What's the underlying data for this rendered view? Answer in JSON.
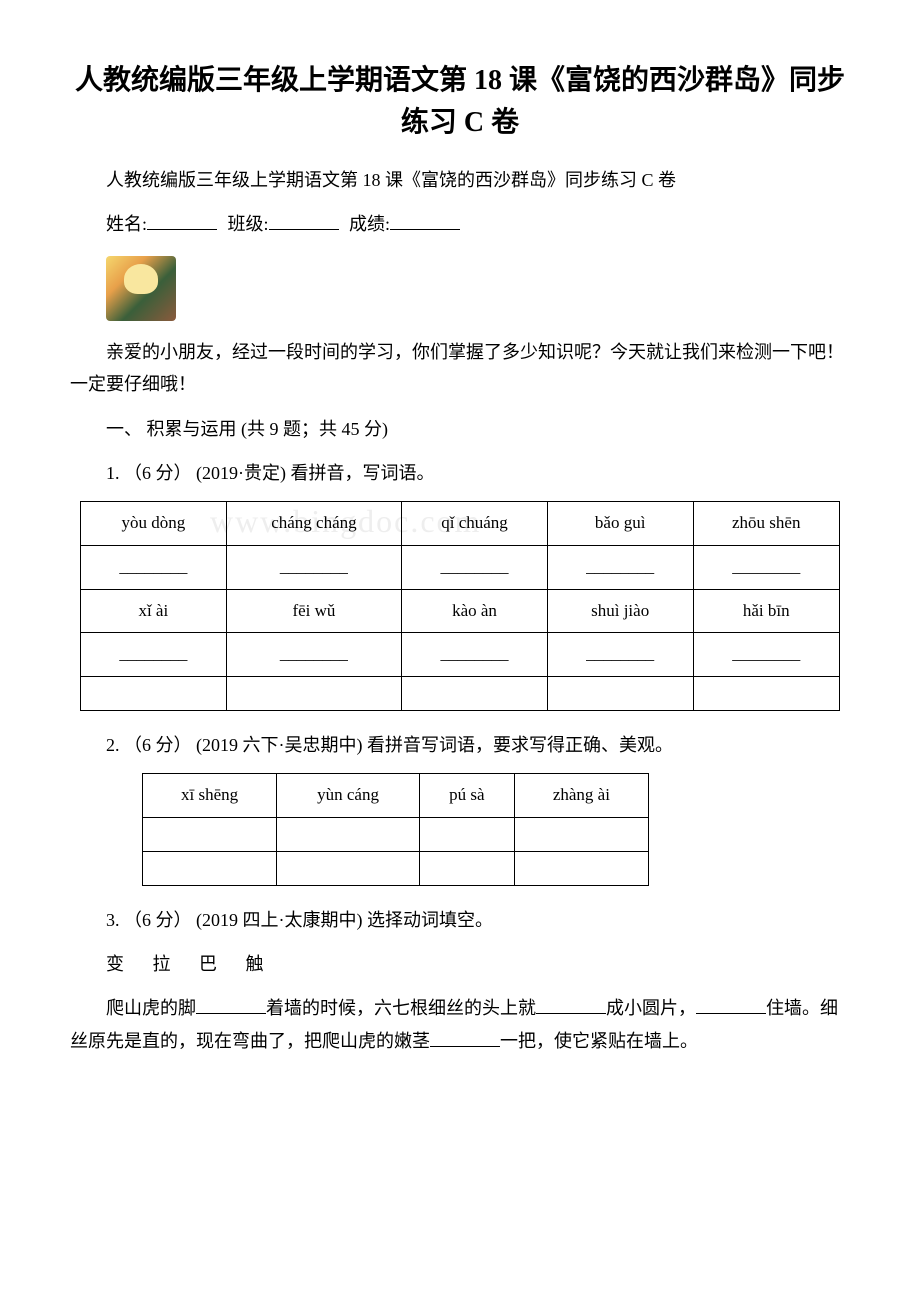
{
  "title": "人教统编版三年级上学期语文第 18 课《富饶的西沙群岛》同步练习 C 卷",
  "subtitle": "人教统编版三年级上学期语文第 18 课《富饶的西沙群岛》同步练习 C 卷",
  "info": {
    "name_label": "姓名:",
    "class_label": "班级:",
    "score_label": "成绩:"
  },
  "intro": "亲爱的小朋友，经过一段时间的学习，你们掌握了多少知识呢？今天就让我们来检测一下吧！一定要仔细哦！",
  "section_header": "一、 积累与运用 (共 9 题；共 45 分)",
  "watermark": "www.bingdoc.com",
  "q1": {
    "text": "1. （6 分） (2019·贵定) 看拼音，写词语。",
    "row1": [
      "yòu dòng",
      "cháng cháng",
      "qǐ chuáng",
      "bǎo guì",
      "zhōu shēn"
    ],
    "row2": [
      "________",
      "________",
      "________",
      "________",
      "________"
    ],
    "row3": [
      "xǐ ài",
      "fēi wǔ",
      "kào àn",
      "shuì jiào",
      "hǎi bīn"
    ],
    "row4": [
      "________",
      "________",
      "________",
      "________",
      "________"
    ],
    "row5": [
      "",
      "",
      "",
      "",
      ""
    ]
  },
  "q2": {
    "text": "2. （6 分） (2019 六下·吴忠期中) 看拼音写词语，要求写得正确、美观。",
    "row1": [
      "xī shēng",
      "yùn cáng",
      "pú sà",
      "zhàng ài"
    ],
    "row2": [
      "",
      "",
      "",
      ""
    ],
    "row3": [
      "",
      "",
      "",
      ""
    ]
  },
  "q3": {
    "text": "3. （6 分） (2019 四上·太康期中) 选择动词填空。",
    "words": "变  拉  巴  触",
    "fill_parts": {
      "p1": "爬山虎的脚",
      "p2": "着墙的时候，六七根细丝的头上就",
      "p3": "成小圆片，",
      "p4": "住墙。细丝原先是直的，现在弯曲了，把爬山虎的嫩茎",
      "p5": "一把，使它紧贴在墙上。"
    }
  }
}
